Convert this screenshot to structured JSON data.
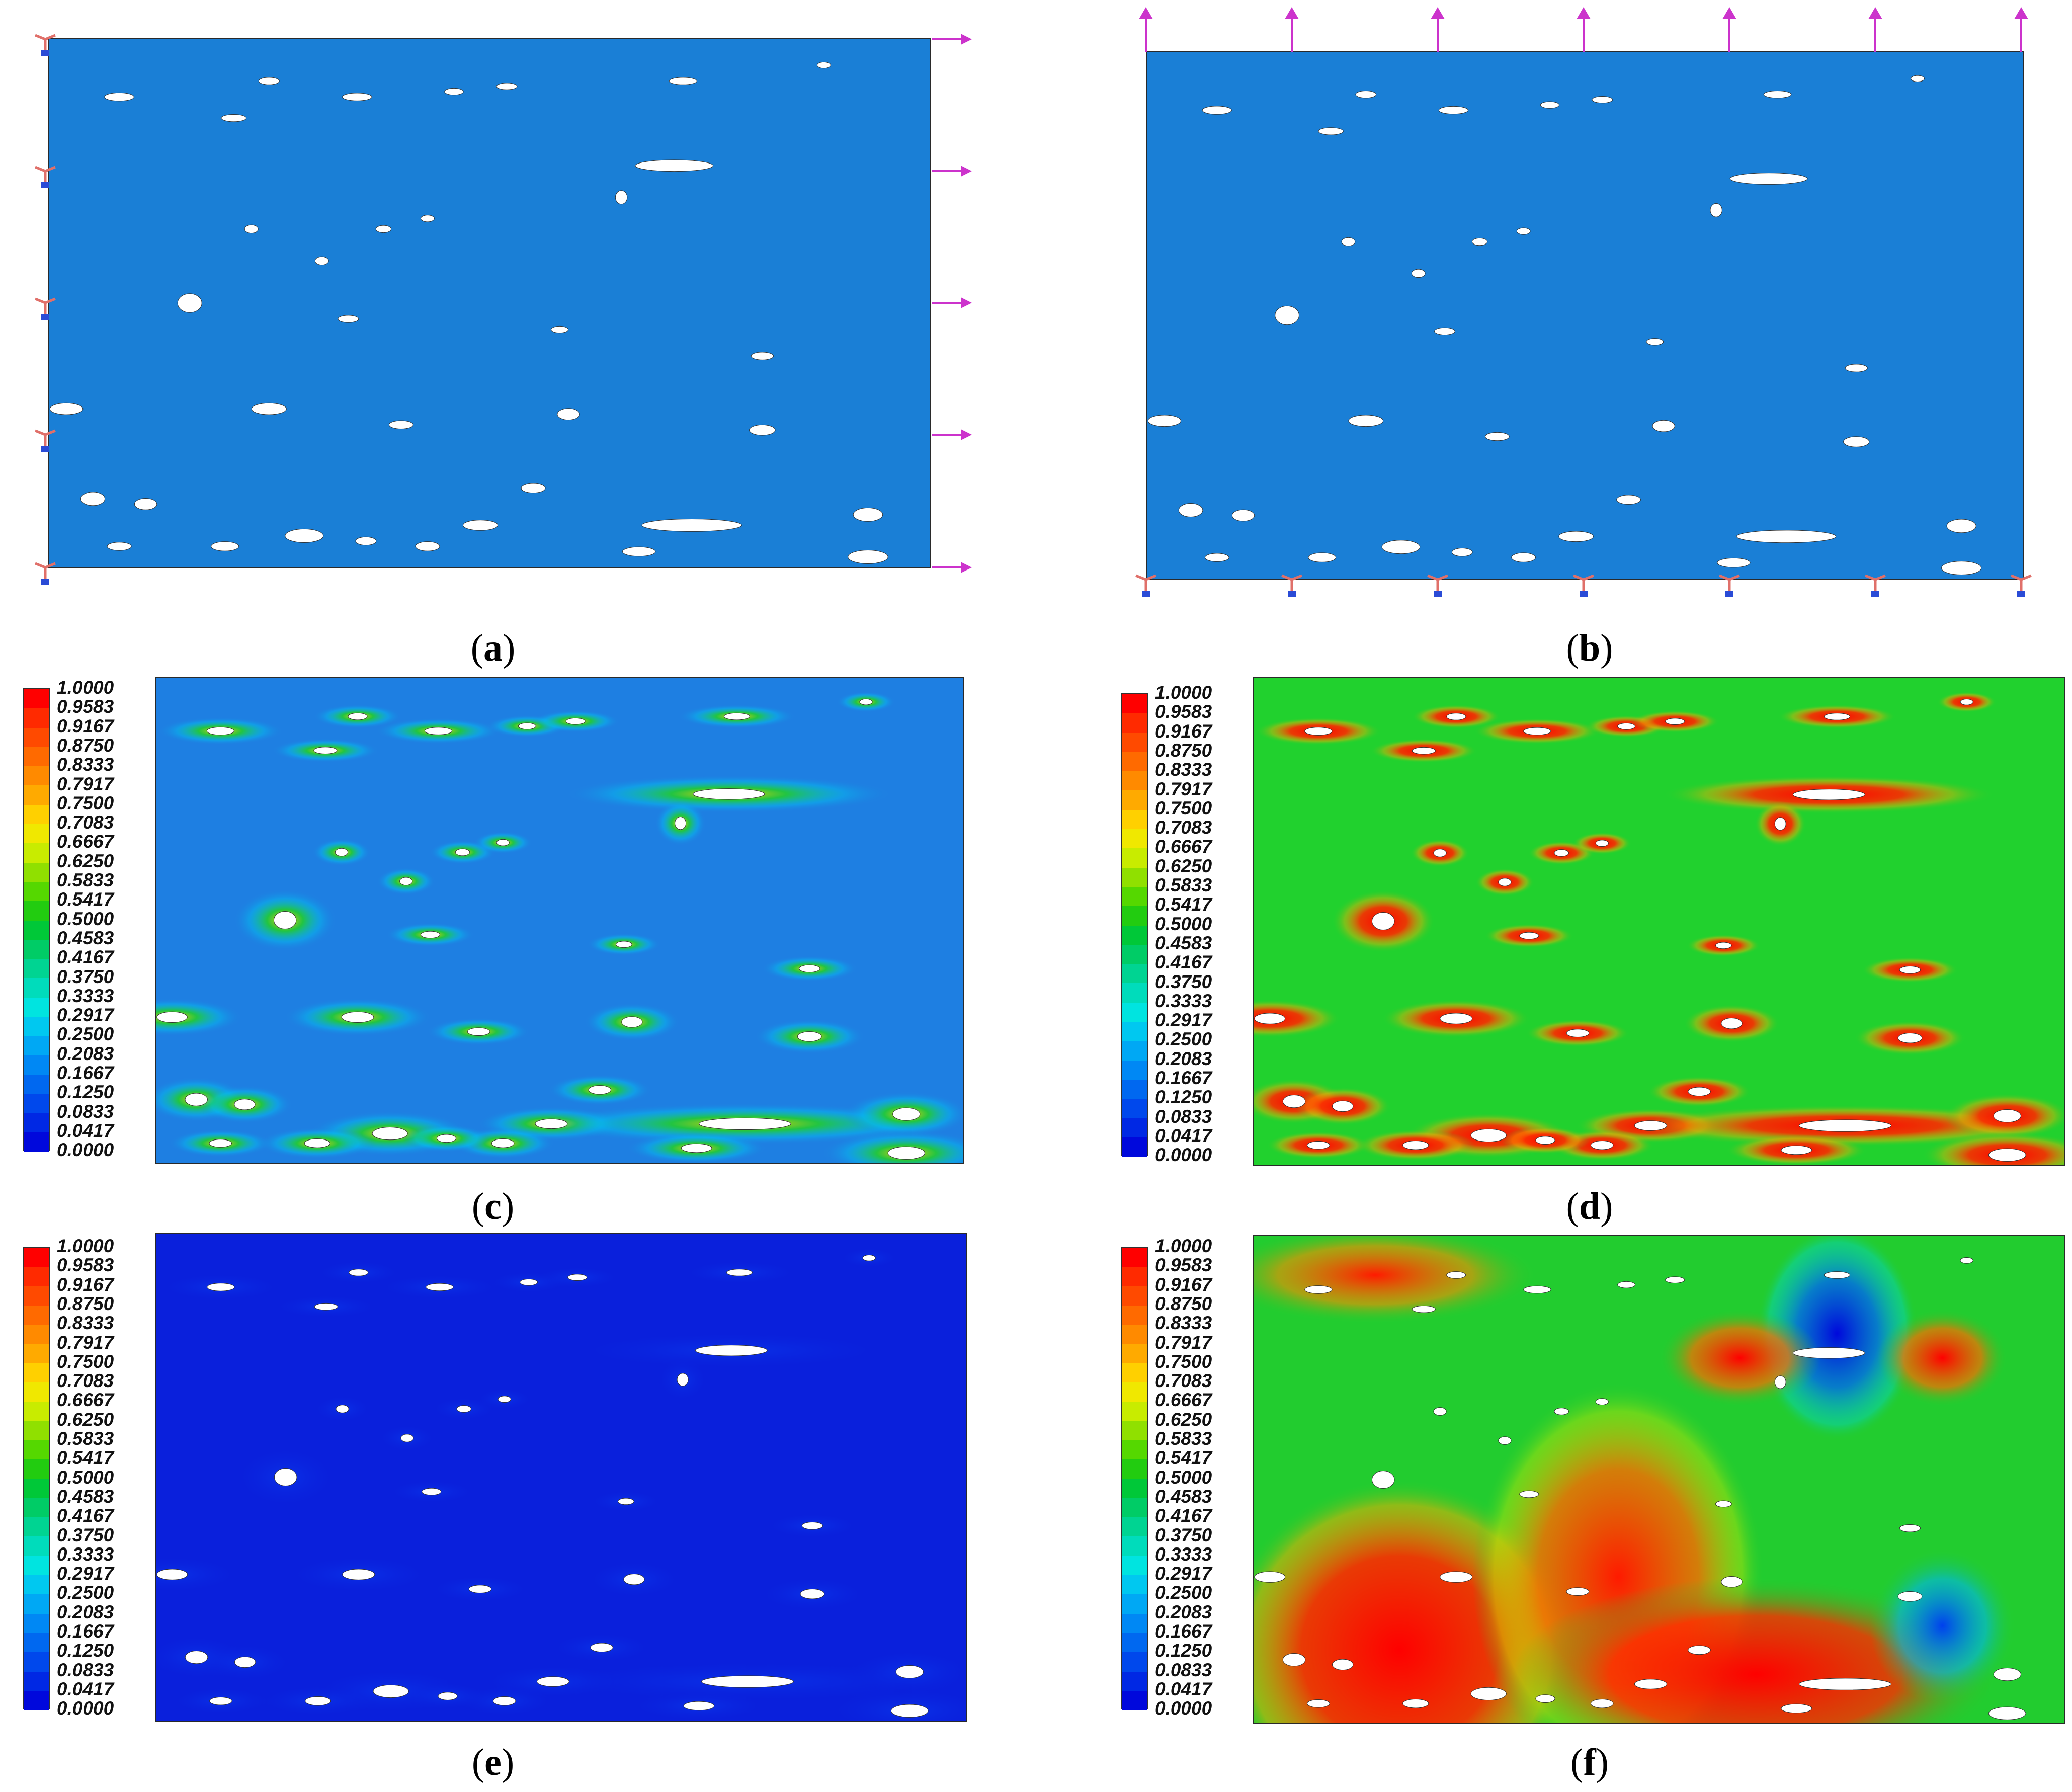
{
  "panels": [
    {
      "id": "a",
      "caption_letter": "a",
      "type": "mesh",
      "fill": "#1a7fd6"
    },
    {
      "id": "b",
      "caption_letter": "b",
      "type": "mesh",
      "fill": "#1a7fd6"
    },
    {
      "id": "c",
      "caption_letter": "c",
      "type": "contour",
      "bg": "#1e7fe2"
    },
    {
      "id": "d",
      "caption_letter": "d",
      "type": "contour",
      "bg": "#21d12e"
    },
    {
      "id": "e",
      "caption_letter": "e",
      "type": "contour",
      "bg": "#0a20dc"
    },
    {
      "id": "f",
      "caption_letter": "f",
      "type": "contour",
      "bg": "#22cc2f"
    }
  ],
  "legend": {
    "ticks": [
      "1.0000",
      "0.9583",
      "0.9167",
      "0.8750",
      "0.8333",
      "0.7917",
      "0.7500",
      "0.7083",
      "0.6667",
      "0.6250",
      "0.5833",
      "0.5417",
      "0.5000",
      "0.4583",
      "0.4167",
      "0.3750",
      "0.3333",
      "0.2917",
      "0.2500",
      "0.2083",
      "0.1667",
      "0.1250",
      "0.0833",
      "0.0417",
      "0.0000"
    ],
    "colors": [
      "#ff0000",
      "#ff2a00",
      "#ff4a00",
      "#ff6a00",
      "#ff8a00",
      "#ffaa00",
      "#ffd000",
      "#f0e800",
      "#c8ec00",
      "#90e000",
      "#55d800",
      "#22cc10",
      "#00c838",
      "#00cc66",
      "#00d492",
      "#00dcbb",
      "#00e4e0",
      "#00c8f0",
      "#00a8f4",
      "#0088f4",
      "#0068f0",
      "#0048ec",
      "#0028e4",
      "#0008dc"
    ]
  },
  "colors": {
    "load_arrow": "#cc33cc",
    "support": "#e0706a",
    "void": "#ffffff"
  }
}
